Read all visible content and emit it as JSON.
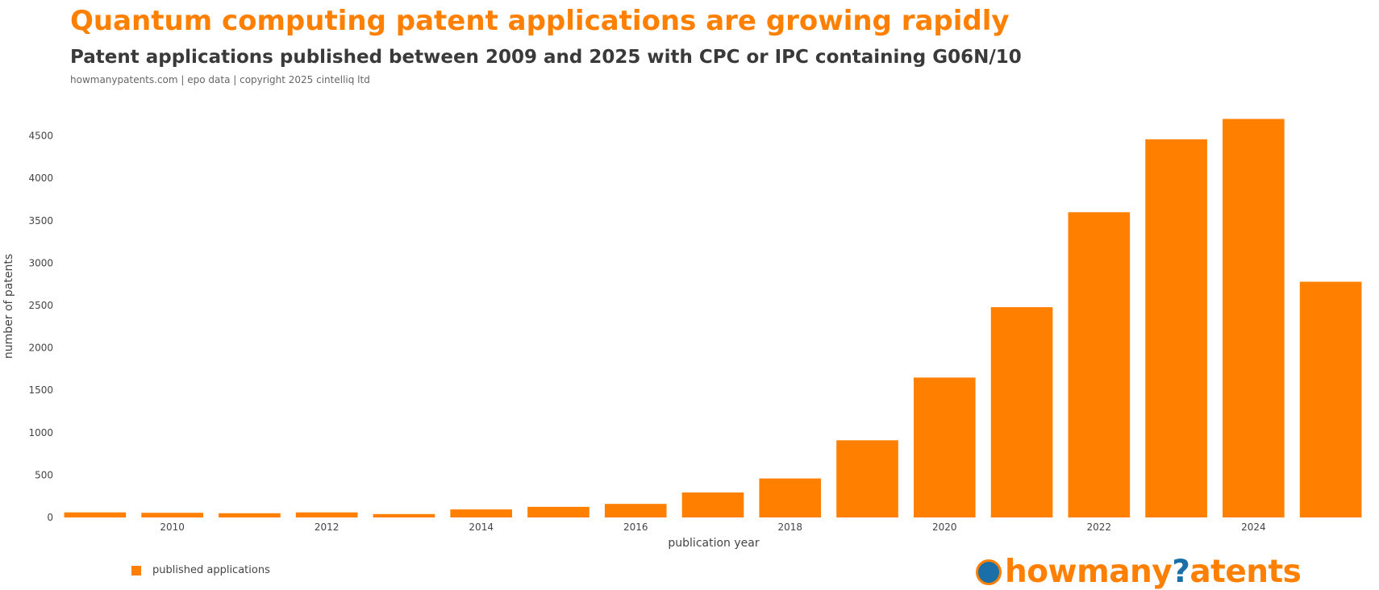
{
  "header": {
    "title": "Quantum computing patent applications are growing rapidly",
    "subtitle": "Patent applications published between 2009 and 2025 with CPC or IPC containing G06N/10",
    "source": "howmanypatents.com | epo data | copyright 2025 cintelliq ltd"
  },
  "legend": {
    "label": "published applications"
  },
  "logo": {
    "part1": "howmany",
    "part2": "?",
    "part3": "atents"
  },
  "chart_data": {
    "type": "bar",
    "categories": [
      2009,
      2010,
      2011,
      2012,
      2013,
      2014,
      2015,
      2016,
      2017,
      2018,
      2019,
      2020,
      2021,
      2022,
      2023,
      2024,
      2025
    ],
    "series": [
      {
        "name": "published applications",
        "values": [
          60,
          55,
          50,
          60,
          40,
          95,
          125,
          160,
          295,
          460,
          910,
          1650,
          2480,
          3600,
          4460,
          4700,
          2780
        ]
      }
    ],
    "xlabel": "publication year",
    "ylabel": "number of patents",
    "xtick_labels": [
      "2010",
      "2012",
      "2014",
      "2016",
      "2018",
      "2020",
      "2022",
      "2024"
    ],
    "yticks": [
      0,
      500,
      1000,
      1500,
      2000,
      2500,
      3000,
      3500,
      4000,
      4500
    ],
    "ylim": [
      0,
      4950
    ],
    "grid": false,
    "legend_position": "bottom-left",
    "color": "#ff8000"
  }
}
